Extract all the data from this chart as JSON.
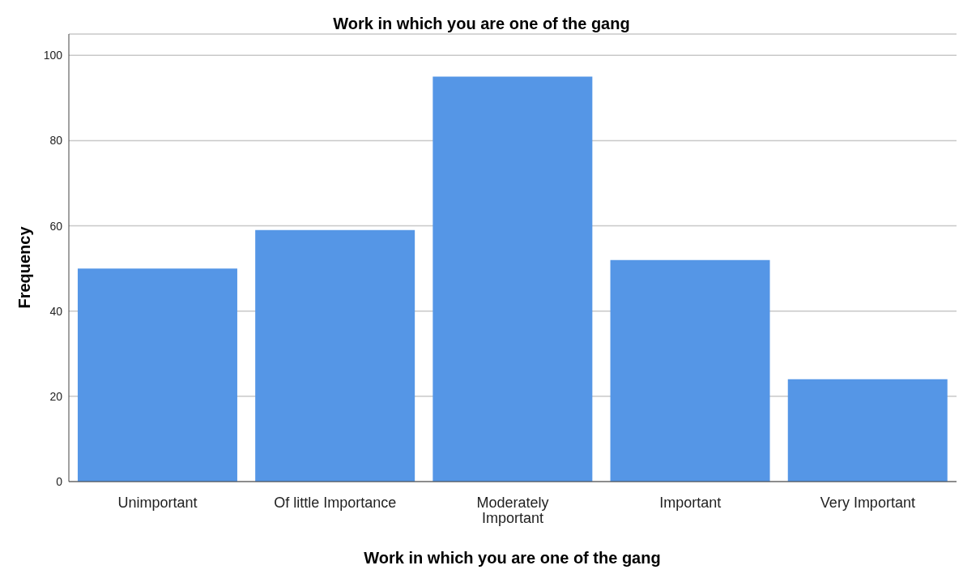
{
  "chart_data": {
    "type": "bar",
    "title": "Work in which you are one of the gang",
    "xlabel": "Work in which you are one of the gang",
    "ylabel": "Frequency",
    "categories": [
      "Unimportant",
      "Of little Importance",
      "Moderately\nImportant",
      "Important",
      "Very Important"
    ],
    "values": [
      50,
      59,
      95,
      52,
      24
    ],
    "color": "#5596e6",
    "ylim": [
      0,
      105
    ],
    "yticks": [
      0,
      20,
      40,
      60,
      80,
      100
    ],
    "grid": "y"
  }
}
